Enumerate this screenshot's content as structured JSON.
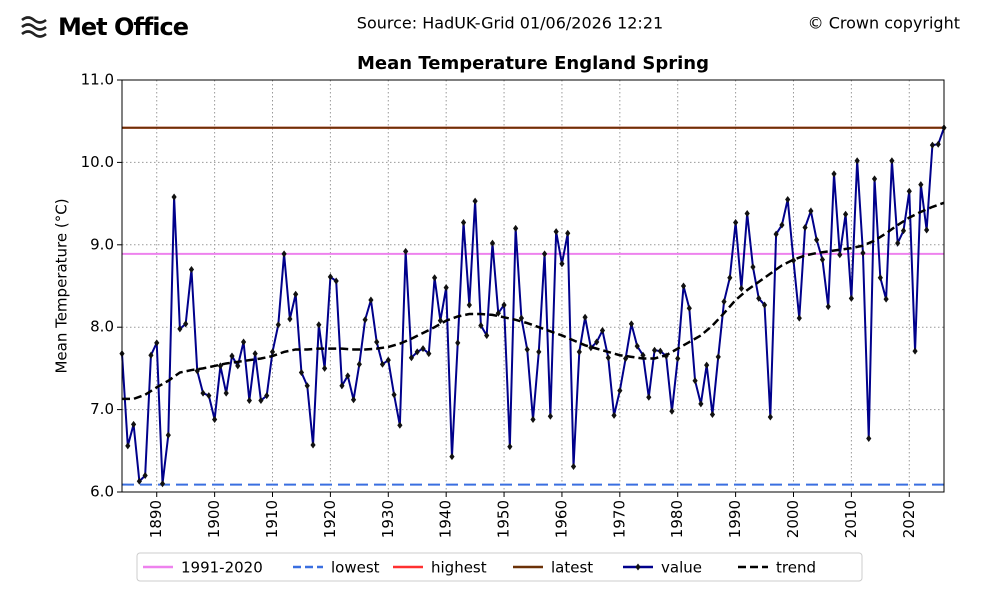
{
  "header": {
    "logo": "Met Office",
    "source": "Source: HadUK-Grid 01/06/2026 12:21",
    "copyright": "© Crown copyright"
  },
  "chart_data": {
    "type": "line",
    "title": "Mean Temperature England Spring",
    "ylabel": "Mean Temperature (°C)",
    "xlim": [
      1884,
      2026
    ],
    "ylim": [
      6.0,
      11.0
    ],
    "xticks": [
      1890,
      1900,
      1910,
      1920,
      1930,
      1940,
      1950,
      1960,
      1970,
      1980,
      1990,
      2000,
      2010,
      2020
    ],
    "yticks": [
      {
        "value": 6.0,
        "label": "6.0"
      },
      {
        "value": 7.0,
        "label": "7.0"
      },
      {
        "value": 8.0,
        "label": "8.0"
      },
      {
        "value": 9.0,
        "label": "9.0"
      },
      {
        "value": 10.0,
        "label": "10.0"
      },
      {
        "value": 11.0,
        "label": "11.0"
      }
    ],
    "grid": true,
    "legend": "bottom",
    "reference_lines": [
      {
        "name": "1991-2020",
        "value": 8.89,
        "color": "#ee82ee",
        "dashed": false
      },
      {
        "name": "lowest",
        "value": 6.09,
        "color": "#3a6fe0",
        "dashed": true
      },
      {
        "name": "highest",
        "value": 10.42,
        "color": "#ff3030",
        "dashed": false
      },
      {
        "name": "latest",
        "value": 10.42,
        "color": "#6b3107",
        "dashed": false
      }
    ],
    "x": [
      1884,
      1885,
      1886,
      1887,
      1888,
      1889,
      1890,
      1891,
      1892,
      1893,
      1894,
      1895,
      1896,
      1897,
      1898,
      1899,
      1900,
      1901,
      1902,
      1903,
      1904,
      1905,
      1906,
      1907,
      1908,
      1909,
      1910,
      1911,
      1912,
      1913,
      1914,
      1915,
      1916,
      1917,
      1918,
      1919,
      1920,
      1921,
      1922,
      1923,
      1924,
      1925,
      1926,
      1927,
      1928,
      1929,
      1930,
      1931,
      1932,
      1933,
      1934,
      1935,
      1936,
      1937,
      1938,
      1939,
      1940,
      1941,
      1942,
      1943,
      1944,
      1945,
      1946,
      1947,
      1948,
      1949,
      1950,
      1951,
      1952,
      1953,
      1954,
      1955,
      1956,
      1957,
      1958,
      1959,
      1960,
      1961,
      1962,
      1963,
      1964,
      1965,
      1966,
      1967,
      1968,
      1969,
      1970,
      1971,
      1972,
      1973,
      1974,
      1975,
      1976,
      1977,
      1978,
      1979,
      1980,
      1981,
      1982,
      1983,
      1984,
      1985,
      1986,
      1987,
      1988,
      1989,
      1990,
      1991,
      1992,
      1993,
      1994,
      1995,
      1996,
      1997,
      1998,
      1999,
      2000,
      2001,
      2002,
      2003,
      2004,
      2005,
      2006,
      2007,
      2008,
      2009,
      2010,
      2011,
      2012,
      2013,
      2014,
      2015,
      2016,
      2017,
      2018,
      2019,
      2020,
      2021,
      2022,
      2023,
      2024,
      2025,
      2026
    ],
    "series": [
      {
        "name": "value",
        "color": "#00008b",
        "marker_color": "#111111",
        "values": [
          7.68,
          6.56,
          6.82,
          6.13,
          6.2,
          7.66,
          7.81,
          6.1,
          6.69,
          9.58,
          7.98,
          8.04,
          8.7,
          7.47,
          7.2,
          7.17,
          6.88,
          7.53,
          7.2,
          7.65,
          7.53,
          7.82,
          7.11,
          7.68,
          7.11,
          7.17,
          7.7,
          8.03,
          8.89,
          8.1,
          8.4,
          7.45,
          7.29,
          6.57,
          8.03,
          7.5,
          8.61,
          8.56,
          7.29,
          7.41,
          7.12,
          7.55,
          8.09,
          8.33,
          7.82,
          7.55,
          7.6,
          7.18,
          6.81,
          8.92,
          7.63,
          7.7,
          7.74,
          7.68,
          8.6,
          8.08,
          8.48,
          6.43,
          7.81,
          9.27,
          8.27,
          9.53,
          8.02,
          7.9,
          9.02,
          8.17,
          8.27,
          6.55,
          9.2,
          8.11,
          7.73,
          6.88,
          7.7,
          8.89,
          6.92,
          9.16,
          8.77,
          9.14,
          6.31,
          7.7,
          8.12,
          7.75,
          7.82,
          7.96,
          7.63,
          6.93,
          7.23,
          7.62,
          8.04,
          7.77,
          7.66,
          7.15,
          7.72,
          7.71,
          7.65,
          6.98,
          7.62,
          8.5,
          8.23,
          7.35,
          7.07,
          7.54,
          6.94,
          7.64,
          8.31,
          8.6,
          9.27,
          8.47,
          9.38,
          8.73,
          8.35,
          8.27,
          6.91,
          9.13,
          9.24,
          9.55,
          8.81,
          8.11,
          9.21,
          9.41,
          9.06,
          8.82,
          8.25,
          9.86,
          8.88,
          9.37,
          8.35,
          10.02,
          8.9,
          6.65,
          9.8,
          8.6,
          8.34,
          10.02,
          9.02,
          9.17,
          9.65,
          7.71,
          9.73,
          9.18,
          10.21,
          10.22,
          10.42
        ]
      },
      {
        "name": "trend",
        "color": "#000000",
        "dashed": true,
        "x": [
          1884,
          1886,
          1888,
          1890,
          1892,
          1894,
          1896,
          1898,
          1900,
          1902,
          1904,
          1906,
          1908,
          1910,
          1912,
          1914,
          1916,
          1918,
          1920,
          1922,
          1924,
          1926,
          1928,
          1930,
          1932,
          1934,
          1936,
          1938,
          1940,
          1942,
          1944,
          1946,
          1948,
          1950,
          1952,
          1954,
          1956,
          1958,
          1960,
          1962,
          1964,
          1966,
          1968,
          1970,
          1972,
          1974,
          1976,
          1978,
          1980,
          1982,
          1984,
          1986,
          1988,
          1990,
          1992,
          1994,
          1996,
          1998,
          2000,
          2002,
          2004,
          2006,
          2008,
          2010,
          2012,
          2014,
          2016,
          2018,
          2020,
          2022,
          2024,
          2026
        ],
        "values": [
          7.13,
          7.13,
          7.18,
          7.27,
          7.35,
          7.45,
          7.48,
          7.5,
          7.53,
          7.56,
          7.58,
          7.6,
          7.62,
          7.65,
          7.7,
          7.73,
          7.73,
          7.74,
          7.74,
          7.74,
          7.73,
          7.73,
          7.74,
          7.76,
          7.8,
          7.86,
          7.93,
          8.0,
          8.08,
          8.13,
          8.16,
          8.16,
          8.15,
          8.12,
          8.09,
          8.05,
          8.0,
          7.95,
          7.9,
          7.84,
          7.78,
          7.74,
          7.7,
          7.66,
          7.64,
          7.62,
          7.62,
          7.66,
          7.74,
          7.82,
          7.9,
          8.02,
          8.17,
          8.33,
          8.45,
          8.55,
          8.65,
          8.75,
          8.82,
          8.87,
          8.9,
          8.92,
          8.94,
          8.96,
          8.99,
          9.05,
          9.14,
          9.24,
          9.33,
          9.4,
          9.46,
          9.51
        ]
      }
    ]
  }
}
